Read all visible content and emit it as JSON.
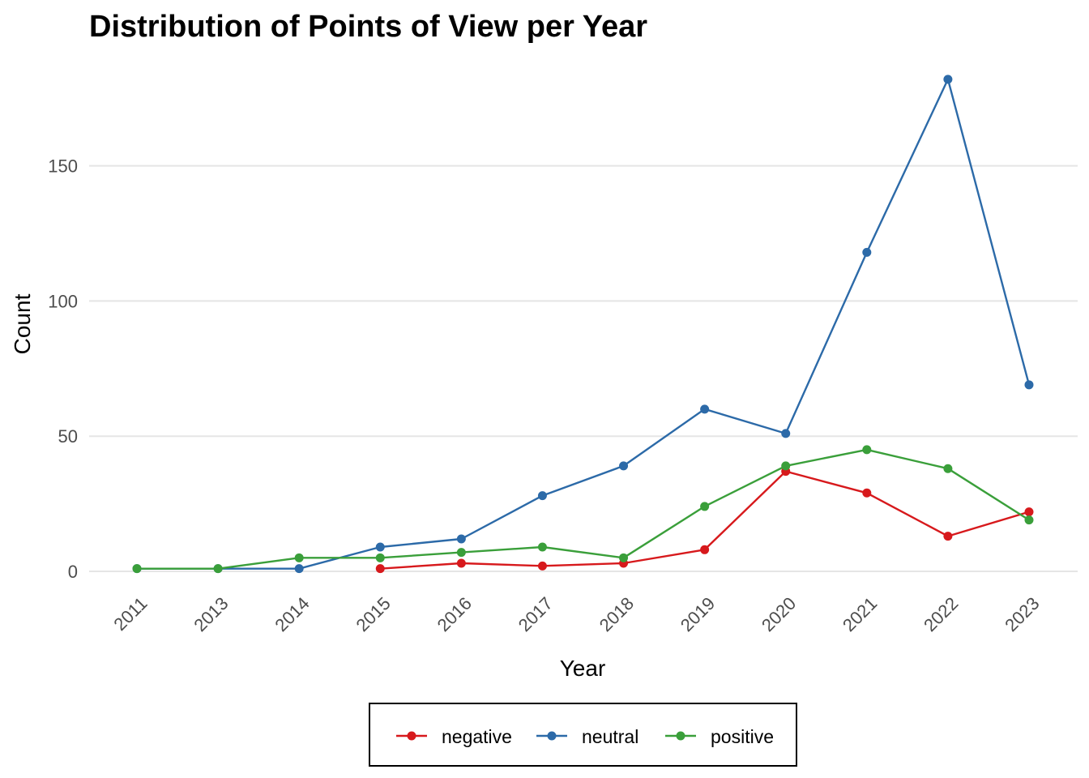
{
  "chart_data": {
    "type": "line",
    "title": "Distribution of Points of View per Year",
    "xlabel": "Year",
    "ylabel": "Count",
    "categories": [
      "2011",
      "2013",
      "2014",
      "2015",
      "2016",
      "2017",
      "2018",
      "2019",
      "2020",
      "2021",
      "2022",
      "2023"
    ],
    "ylim": [
      -5,
      190
    ],
    "yticks": [
      0,
      50,
      100,
      150
    ],
    "grid": true,
    "legend_position": "bottom",
    "series": [
      {
        "name": "negative",
        "color": "#d7191c",
        "values": [
          null,
          null,
          null,
          1,
          3,
          2,
          3,
          8,
          37,
          29,
          13,
          22
        ]
      },
      {
        "name": "neutral",
        "color": "#2c6aa8",
        "values": [
          1,
          1,
          1,
          9,
          12,
          28,
          39,
          60,
          51,
          118,
          182,
          69
        ]
      },
      {
        "name": "positive",
        "color": "#3a9f3a",
        "values": [
          1,
          1,
          5,
          5,
          7,
          9,
          5,
          24,
          39,
          45,
          38,
          19
        ]
      }
    ]
  }
}
